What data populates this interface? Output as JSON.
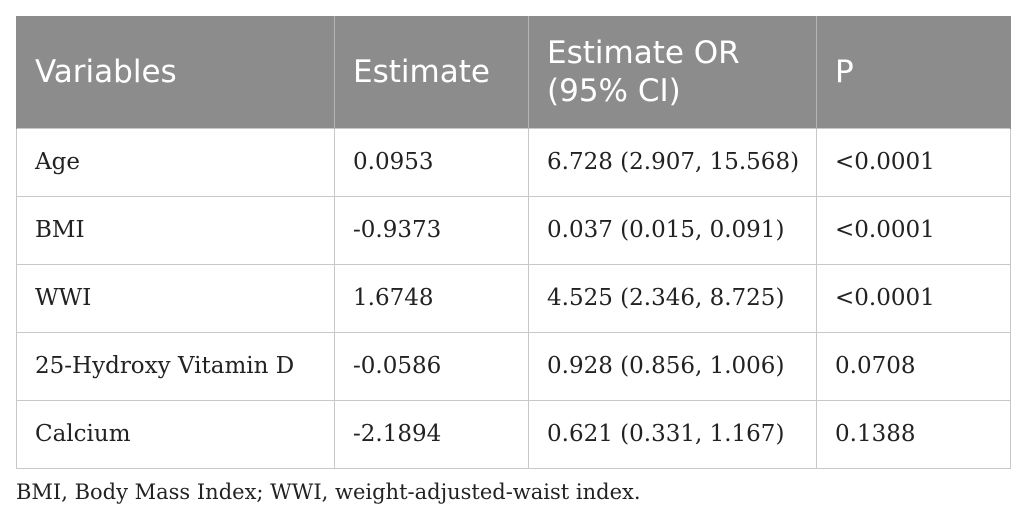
{
  "table": {
    "headers": [
      "Variables",
      "Estimate",
      "Estimate OR (95% CI)",
      "P"
    ],
    "rows": [
      [
        "Age",
        "0.0953",
        "6.728 (2.907, 15.568)",
        "<0.0001"
      ],
      [
        "BMI",
        "-0.9373",
        "0.037 (0.015, 0.091)",
        "<0.0001"
      ],
      [
        "WWI",
        "1.6748",
        "4.525 (2.346, 8.725)",
        "<0.0001"
      ],
      [
        "25-Hydroxy Vitamin D",
        "-0.0586",
        "0.928 (0.856, 1.006)",
        "0.0708"
      ],
      [
        "Calcium",
        "-2.1894",
        "0.621 (0.331, 1.167)",
        "0.1388"
      ]
    ]
  },
  "footnote": "BMI, Body Mass Index; WWI, weight-adjusted-waist index."
}
